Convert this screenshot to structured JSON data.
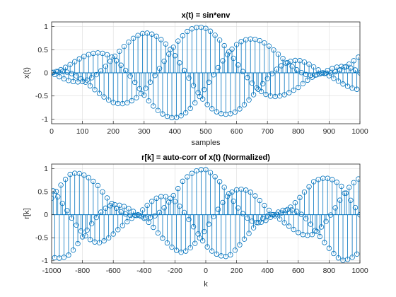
{
  "chart_data": [
    {
      "type": "scatter",
      "title": "x(t) = sin*env",
      "xlabel": "samples",
      "ylabel": "x(t)",
      "xlim": [
        0,
        1000
      ],
      "ylim": [
        -1.1,
        1.1
      ],
      "xticks": [
        0,
        100,
        200,
        300,
        400,
        500,
        600,
        700,
        800,
        900,
        1000
      ],
      "yticks": [
        -1,
        -0.5,
        0,
        0.5,
        1
      ],
      "xticklabels": [
        "0",
        "100",
        "200",
        "300",
        "400",
        "500",
        "600",
        "700",
        "800",
        "900",
        "1000"
      ],
      "yticklabels": [
        "-1",
        "-0.5",
        "0",
        "0.5",
        "1"
      ],
      "grid": true,
      "style": "stem",
      "marker": "circle",
      "color": "#0072bd",
      "series": [
        {
          "x_start": 0,
          "x_end": 1000,
          "x_step": 5,
          "envelope_x": [
            0,
            100,
            200,
            300,
            400,
            440,
            500,
            600,
            700,
            800,
            880,
            950,
            1000
          ],
          "envelope_y": [
            0,
            0.34,
            0.64,
            0.86,
            0.98,
            1.0,
            0.98,
            0.86,
            0.64,
            0.34,
            0,
            0.26,
            0.42
          ]
        }
      ]
    },
    {
      "type": "scatter",
      "title": "r[k] = auto-corr of x(t) (Normalized)",
      "xlabel": "k",
      "ylabel": "r[k]",
      "xlim": [
        -1000,
        1000
      ],
      "ylim": [
        -1.05,
        1.1
      ],
      "xticks": [
        -1000,
        -800,
        -600,
        -400,
        -200,
        0,
        200,
        400,
        600,
        800,
        1000
      ],
      "yticks": [
        -1,
        -0.5,
        0,
        0.5,
        1
      ],
      "xticklabels": [
        "-1000",
        "-800",
        "-600",
        "-400",
        "-200",
        "0",
        "200",
        "400",
        "600",
        "800",
        "1000"
      ],
      "yticklabels": [
        "-1",
        "-0.5",
        "0",
        "0.5",
        "1"
      ],
      "grid": true,
      "style": "stem",
      "marker": "circle",
      "color": "#0072bd",
      "series": [
        {
          "x_start": -1000,
          "x_end": 1000,
          "x_step": 10,
          "envelope_x": [
            -1000,
            -880,
            -700,
            -560,
            -440,
            -300,
            -150,
            0,
            150,
            300,
            440,
            560,
            700,
            880,
            1000
          ],
          "envelope_y": [
            0.92,
            1.0,
            0.72,
            0.3,
            0,
            0.48,
            0.9,
            1.0,
            0.9,
            0.48,
            0,
            0.3,
            0.72,
            1.0,
            0.92
          ]
        }
      ]
    }
  ]
}
